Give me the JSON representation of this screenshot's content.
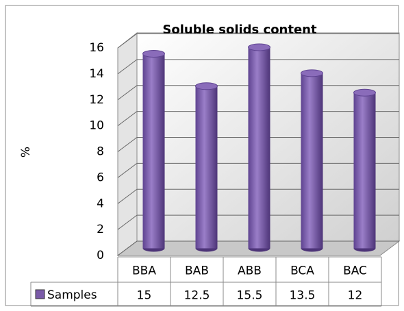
{
  "chart_data": {
    "type": "bar",
    "title": "Soluble solids content",
    "ylabel": "%",
    "categories": [
      "BBA",
      "BAB",
      "ABB",
      "BCA",
      "BAC"
    ],
    "series": [
      {
        "name": "Samples",
        "color": "#7a5aa8",
        "values": [
          15,
          12.5,
          15.5,
          13.5,
          12
        ]
      }
    ],
    "ylim": [
      0,
      16
    ],
    "yticks": [
      0,
      2,
      4,
      6,
      8,
      10,
      12,
      14,
      16
    ],
    "grid": true,
    "data_table": true
  }
}
